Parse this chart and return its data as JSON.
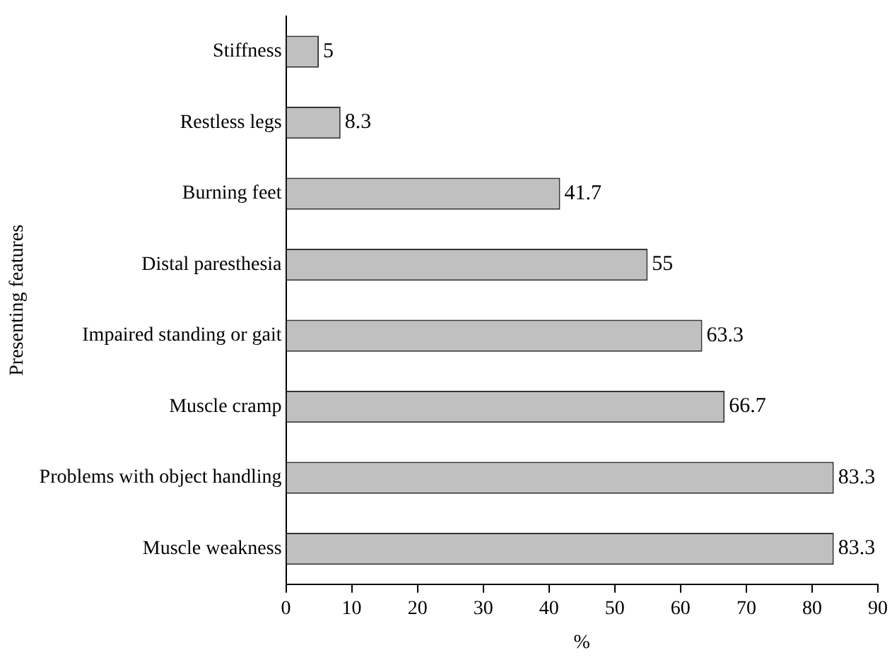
{
  "chart_data": {
    "type": "bar",
    "orientation": "horizontal",
    "xlabel": "%",
    "ylabel": "Presenting features",
    "categories": [
      "Stiffness",
      "Restless legs",
      "Burning feet",
      "Distal paresthesia",
      "Impaired standing or gait",
      "Muscle cramp",
      "Problems with object handling",
      "Muscle weakness"
    ],
    "values": [
      5,
      8.3,
      41.7,
      55,
      63.3,
      66.7,
      83.3,
      83.3
    ],
    "color": "#c0c0c0",
    "xlim": [
      0,
      90
    ],
    "xticks": [
      0,
      10,
      20,
      30,
      40,
      50,
      60,
      70,
      80,
      90
    ],
    "grid": false,
    "legend": false,
    "data_labels": true
  }
}
